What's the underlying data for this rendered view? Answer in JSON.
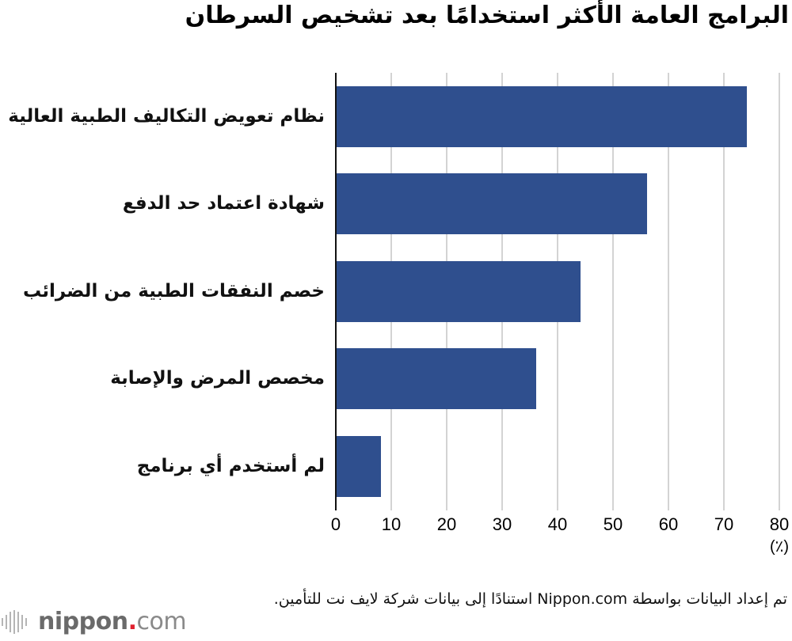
{
  "header": {
    "title": "البرامج العامة الأكثر استخدامًا بعد تشخيص السرطان"
  },
  "axis": {
    "ticks": [
      "0",
      "10",
      "20",
      "30",
      "40",
      "50",
      "60",
      "70",
      "80"
    ],
    "unit": "(٪)"
  },
  "bars": [
    {
      "label": "نظام تعويض التكاليف الطبية العالية",
      "value": 74
    },
    {
      "label": "شهادة اعتماد حد الدفع",
      "value": 56
    },
    {
      "label": "خصم النفقات الطبية من الضرائب",
      "value": 44
    },
    {
      "label": "مخصص المرض والإصابة",
      "value": 36
    },
    {
      "label": "لم أستخدم أي برنامج",
      "value": 8
    }
  ],
  "footer": {
    "source": "تم إعداد البيانات بواسطة Nippon.com استنادًا إلى بيانات شركة لايف نت للتأمين.",
    "logo_main": "nippon",
    "logo_dot": ".",
    "logo_suffix": "com"
  },
  "colors": {
    "bar": "#2f4f8e",
    "gridline": "#d3d3d3",
    "logo_dot": "#e0212e"
  },
  "chart_data": {
    "type": "bar",
    "orientation": "horizontal",
    "title": "البرامج العامة الأكثر استخدامًا بعد تشخيص السرطان",
    "categories": [
      "نظام تعويض التكاليف الطبية العالية",
      "شهادة اعتماد حد الدفع",
      "خصم النفقات الطبية من الضرائب",
      "مخصص المرض والإصابة",
      "لم أستخدم أي برنامج"
    ],
    "values": [
      74,
      56,
      44,
      36,
      8
    ],
    "xlabel": "(٪)",
    "ylabel": "",
    "xlim": [
      0,
      80
    ],
    "xticks": [
      0,
      10,
      20,
      30,
      40,
      50,
      60,
      70,
      80
    ],
    "grid": true,
    "legend": null,
    "source": "تم إعداد البيانات بواسطة Nippon.com استنادًا إلى بيانات شركة لايف نت للتأمين."
  }
}
